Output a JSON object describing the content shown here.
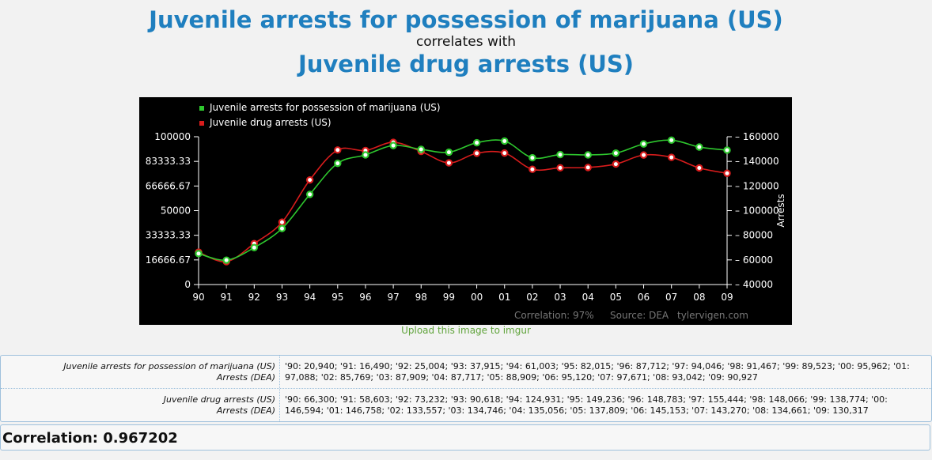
{
  "header": {
    "title1": "Juvenile arrests for possession of marijuana (US)",
    "connector": "correlates with",
    "title2": "Juvenile drug arrests (US)"
  },
  "upload_link": "Upload this image to imgur",
  "chart_data": {
    "type": "line",
    "categories": [
      "90",
      "91",
      "92",
      "93",
      "94",
      "95",
      "96",
      "97",
      "98",
      "99",
      "00",
      "01",
      "02",
      "03",
      "04",
      "05",
      "06",
      "07",
      "08",
      "09"
    ],
    "series": [
      {
        "name": "Juvenile arrests for possession of marijuana (US)",
        "color": "#2ec82e",
        "axis": "left",
        "values": [
          20940,
          16490,
          25004,
          37915,
          61003,
          82015,
          87712,
          94046,
          91467,
          89523,
          95962,
          97088,
          85769,
          87909,
          87717,
          88909,
          95120,
          97671,
          93042,
          90927
        ]
      },
      {
        "name": "Juvenile drug arrests (US)",
        "color": "#d81c1c",
        "axis": "right",
        "values": [
          66300,
          58603,
          73232,
          90618,
          124931,
          149236,
          148783,
          155444,
          148066,
          138774,
          146594,
          146758,
          133557,
          134746,
          135056,
          137809,
          145153,
          143270,
          134661,
          130317
        ]
      }
    ],
    "left_axis": {
      "ylim": [
        0,
        100000
      ],
      "ticks": [
        "0",
        "16666.67",
        "33333.33",
        "50000",
        "66666.67",
        "83333.33",
        "100000"
      ]
    },
    "right_axis": {
      "ylim": [
        40000,
        160000
      ],
      "ticks": [
        "40000",
        "60000",
        "80000",
        "100000",
        "120000",
        "140000",
        "160000"
      ],
      "label": "Arrests"
    },
    "legend_position": "top-left",
    "footer": {
      "correlation": "Correlation: 97%",
      "source": "Source: DEA",
      "site": "tylervigen.com"
    },
    "colors": {
      "background": "#000000",
      "axis": "#ffffff",
      "footer_text": "#777777"
    }
  },
  "table": {
    "rows": [
      {
        "name": "Juvenile arrests for possession of marijuana (US)",
        "unit": "Arrests (DEA)",
        "values": "'90: 20,940;  '91: 16,490;  '92: 25,004;  '93: 37,915;  '94: 61,003;  '95: 82,015;  '96: 87,712;  '97: 94,046;  '98: 91,467;  '99: 89,523;  '00: 95,962;  '01: 97,088;  '02: 85,769;  '03: 87,909;  '04: 87,717;  '05: 88,909;  '06: 95,120;  '07: 97,671;  '08: 93,042;  '09: 90,927"
      },
      {
        "name": "Juvenile drug arrests (US)",
        "unit": "Arrests (DEA)",
        "values": "'90: 66,300;  '91: 58,603;  '92: 73,232;  '93: 90,618;  '94: 124,931;  '95: 149,236;  '96: 148,783;  '97: 155,444;  '98: 148,066;  '99: 138,774;  '00: 146,594;  '01: 146,758;  '02: 133,557;  '03: 134,746;  '04: 135,056;  '05: 137,809;  '06: 145,153;  '07: 143,270;  '08: 134,661;  '09: 130,317"
      }
    ]
  },
  "correlation_text": "Correlation: 0.967202"
}
